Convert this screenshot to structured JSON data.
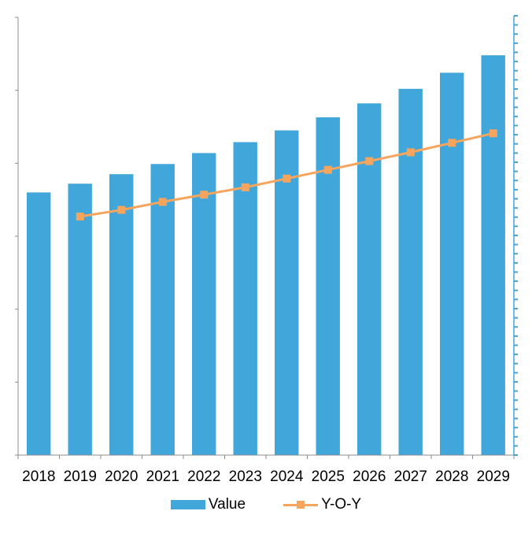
{
  "chart_data": {
    "type": "bar",
    "title": "",
    "xlabel": "",
    "ylabel": "",
    "categories": [
      "2018",
      "2019",
      "2020",
      "2021",
      "2022",
      "2023",
      "2024",
      "2025",
      "2026",
      "2027",
      "2028",
      "2029"
    ],
    "series": [
      {
        "name": "Value",
        "kind": "bar",
        "axis": "left",
        "color": "#41a6da",
        "values": [
          3.6,
          3.72,
          3.85,
          3.99,
          4.14,
          4.29,
          4.45,
          4.63,
          4.82,
          5.02,
          5.24,
          5.48
        ]
      },
      {
        "name": "Y-O-Y",
        "kind": "line",
        "axis": "right",
        "color": "#f6a55e",
        "values": [
          null,
          3.27,
          3.36,
          3.47,
          3.57,
          3.67,
          3.79,
          3.91,
          4.03,
          4.15,
          4.28,
          4.41
        ]
      }
    ],
    "ylim": [
      0,
      6
    ],
    "y_tick_values": [
      0,
      1,
      2,
      3,
      4,
      5,
      6
    ],
    "y_tick_labels": [
      "",
      "",
      "",
      "",
      "",
      "",
      ""
    ],
    "y2_ticks": "dense dash marks, no labels",
    "grid": false,
    "legend_position": "bottom-center"
  },
  "colors": {
    "bar": "#41a6da",
    "line": "#f6a55e",
    "axis": "#8c8c8c",
    "right_axis": "#41a6da"
  }
}
